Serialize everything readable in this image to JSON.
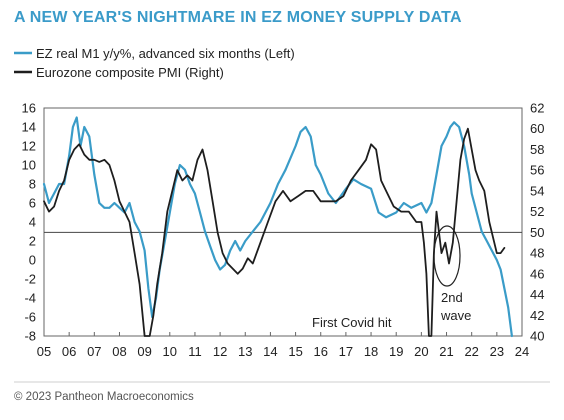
{
  "chart_data": {
    "type": "line",
    "title": "A NEW YEAR'S NIGHTMARE IN EZ MONEY SUPPLY DATA",
    "legend_position": "top-left",
    "x_range": [
      2005,
      2024
    ],
    "x_ticks": [
      "05",
      "06",
      "07",
      "08",
      "09",
      "10",
      "11",
      "12",
      "13",
      "14",
      "15",
      "16",
      "17",
      "18",
      "19",
      "20",
      "21",
      "22",
      "23",
      "24"
    ],
    "y_left": {
      "range": [
        -8,
        16
      ],
      "ticks": [
        "-8",
        "-6",
        "-4",
        "-2",
        "0",
        "2",
        "4",
        "6",
        "8",
        "10",
        "12",
        "14",
        "16"
      ]
    },
    "y_right": {
      "range": [
        40,
        62
      ],
      "ticks": [
        "40",
        "42",
        "44",
        "46",
        "48",
        "50",
        "52",
        "54",
        "56",
        "58",
        "60",
        "62"
      ]
    },
    "reference_line": {
      "axis": "right",
      "value": 50
    },
    "series": [
      {
        "name": "EZ real M1 y/y%, advanced six months (Left)",
        "axis": "left",
        "color": "#3a9cc8",
        "x": [
          2005.0,
          2005.2,
          2005.4,
          2005.6,
          2005.8,
          2006.0,
          2006.15,
          2006.3,
          2006.45,
          2006.6,
          2006.8,
          2007.0,
          2007.2,
          2007.4,
          2007.6,
          2007.8,
          2008.0,
          2008.2,
          2008.4,
          2008.6,
          2008.8,
          2009.0,
          2009.15,
          2009.3,
          2009.45,
          2009.6,
          2009.8,
          2010.0,
          2010.2,
          2010.4,
          2010.6,
          2010.8,
          2011.0,
          2011.2,
          2011.4,
          2011.6,
          2011.8,
          2012.0,
          2012.2,
          2012.4,
          2012.6,
          2012.8,
          2013.0,
          2013.3,
          2013.6,
          2014.0,
          2014.3,
          2014.6,
          2015.0,
          2015.2,
          2015.4,
          2015.6,
          2015.8,
          2016.0,
          2016.3,
          2016.6,
          2017.0,
          2017.3,
          2017.6,
          2018.0,
          2018.3,
          2018.6,
          2019.0,
          2019.3,
          2019.6,
          2020.0,
          2020.2,
          2020.4,
          2020.6,
          2020.8,
          2021.0,
          2021.15,
          2021.3,
          2021.5,
          2021.7,
          2021.9,
          2022.0,
          2022.2,
          2022.4,
          2022.6,
          2022.8,
          2023.0,
          2023.15,
          2023.3,
          2023.45,
          2023.6
        ],
        "y": [
          8,
          6,
          7,
          8,
          8,
          11,
          14,
          15,
          12,
          14,
          13,
          9,
          6,
          5.5,
          5.5,
          6,
          5.5,
          5,
          6,
          4,
          3,
          1,
          -3,
          -6,
          -4,
          -1,
          2,
          5,
          8,
          10,
          9.5,
          8,
          7,
          5,
          3,
          1.5,
          0,
          -1,
          -0.5,
          1,
          2,
          1,
          2,
          3,
          4,
          6,
          8,
          9.5,
          12,
          13.5,
          14,
          13,
          10,
          9,
          7,
          6,
          7.5,
          8.5,
          8,
          7.5,
          5,
          4.5,
          5,
          6,
          5.5,
          6,
          5,
          6,
          9,
          12,
          13,
          14,
          14.5,
          14,
          12,
          9,
          7,
          5,
          3,
          2,
          1,
          0,
          -1,
          -3,
          -5,
          -8
        ]
      },
      {
        "name": "Eurozone composite PMI (Right)",
        "axis": "right",
        "color": "#1e1e1e",
        "x": [
          2005.0,
          2005.2,
          2005.4,
          2005.6,
          2005.8,
          2006.0,
          2006.2,
          2006.4,
          2006.6,
          2006.8,
          2007.0,
          2007.2,
          2007.4,
          2007.6,
          2007.8,
          2008.0,
          2008.2,
          2008.4,
          2008.6,
          2008.8,
          2009.0,
          2009.1,
          2009.2,
          2009.35,
          2009.5,
          2009.7,
          2009.9,
          2010.1,
          2010.3,
          2010.5,
          2010.7,
          2010.9,
          2011.1,
          2011.3,
          2011.5,
          2011.7,
          2011.9,
          2012.1,
          2012.3,
          2012.5,
          2012.7,
          2012.9,
          2013.1,
          2013.3,
          2013.6,
          2013.9,
          2014.2,
          2014.5,
          2014.8,
          2015.1,
          2015.4,
          2015.7,
          2016.0,
          2016.3,
          2016.6,
          2016.9,
          2017.2,
          2017.5,
          2017.8,
          2018.0,
          2018.2,
          2018.4,
          2018.6,
          2018.9,
          2019.2,
          2019.5,
          2019.8,
          2020.0,
          2020.1,
          2020.2,
          2020.3,
          2020.4,
          2020.5,
          2020.6,
          2020.8,
          2020.95,
          2021.1,
          2021.25,
          2021.4,
          2021.55,
          2021.7,
          2021.85,
          2022.0,
          2022.15,
          2022.3,
          2022.5,
          2022.7,
          2022.9,
          2023.0,
          2023.15,
          2023.3
        ],
        "y": [
          53,
          52,
          52.5,
          54,
          55,
          57,
          58,
          58.5,
          57.5,
          57,
          57,
          56.8,
          57,
          56.5,
          55,
          53,
          52,
          51,
          48,
          45,
          38,
          37,
          39,
          42,
          45,
          48,
          52,
          54,
          56,
          55,
          55.5,
          55,
          57,
          58,
          56,
          53,
          50,
          48,
          47,
          46.5,
          46,
          46.5,
          47.5,
          47,
          49,
          51,
          53,
          54,
          53,
          53.5,
          54,
          54,
          53,
          53,
          53,
          53.5,
          55,
          56,
          57,
          58.5,
          58,
          55,
          54,
          52.5,
          52,
          52,
          51,
          51,
          49,
          46,
          30,
          33,
          48,
          52,
          48,
          49,
          47,
          49,
          53,
          57,
          59,
          60,
          58,
          56,
          55,
          54,
          51,
          49,
          48,
          48,
          48.5
        ]
      }
    ],
    "annotations": [
      {
        "text": "First Covid hit"
      },
      {
        "text": "2nd"
      },
      {
        "text": "wave"
      }
    ]
  },
  "footer": {
    "copyright": "© 2023 Pantheon Macroeconomics"
  }
}
